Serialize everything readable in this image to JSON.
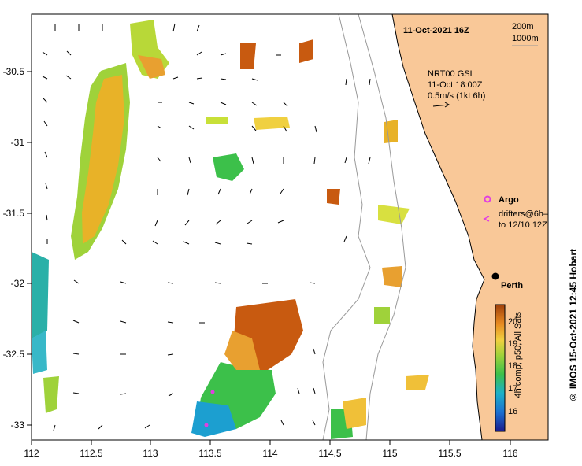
{
  "header": {
    "title": "11-Oct-2021 16Z",
    "depth_200": "200m",
    "depth_1000": "1000m"
  },
  "current_legend": {
    "line1": "NRT00 GSL",
    "line2": "11-Oct 18:00Z",
    "line3": "0.5m/s (1kt 6h)"
  },
  "markers": {
    "argo_label": "Argo",
    "drifters_line1": "drifters@6h–",
    "drifters_line2": "to 12/10 12Z",
    "city": "Perth"
  },
  "colorbar": {
    "ticks": [
      "20",
      "19",
      "18",
      "17",
      "16"
    ],
    "caption": "4h comp, p50, All Sats"
  },
  "credit": "©  IMOS 15-Oct-2021 12:45 Hobart",
  "axes": {
    "x_ticks": [
      "112",
      "112.5",
      "113",
      "113.5",
      "114",
      "114.5",
      "115",
      "115.5",
      "116"
    ],
    "y_ticks": [
      "-30.5",
      "-31",
      "-31.5",
      "-32",
      "-32.5",
      "-33"
    ]
  },
  "colors": {
    "land": "#f9c898",
    "sst_cold": "#1c9fd0",
    "sst_warm": "#c85a10",
    "argo": "#e040e0"
  }
}
